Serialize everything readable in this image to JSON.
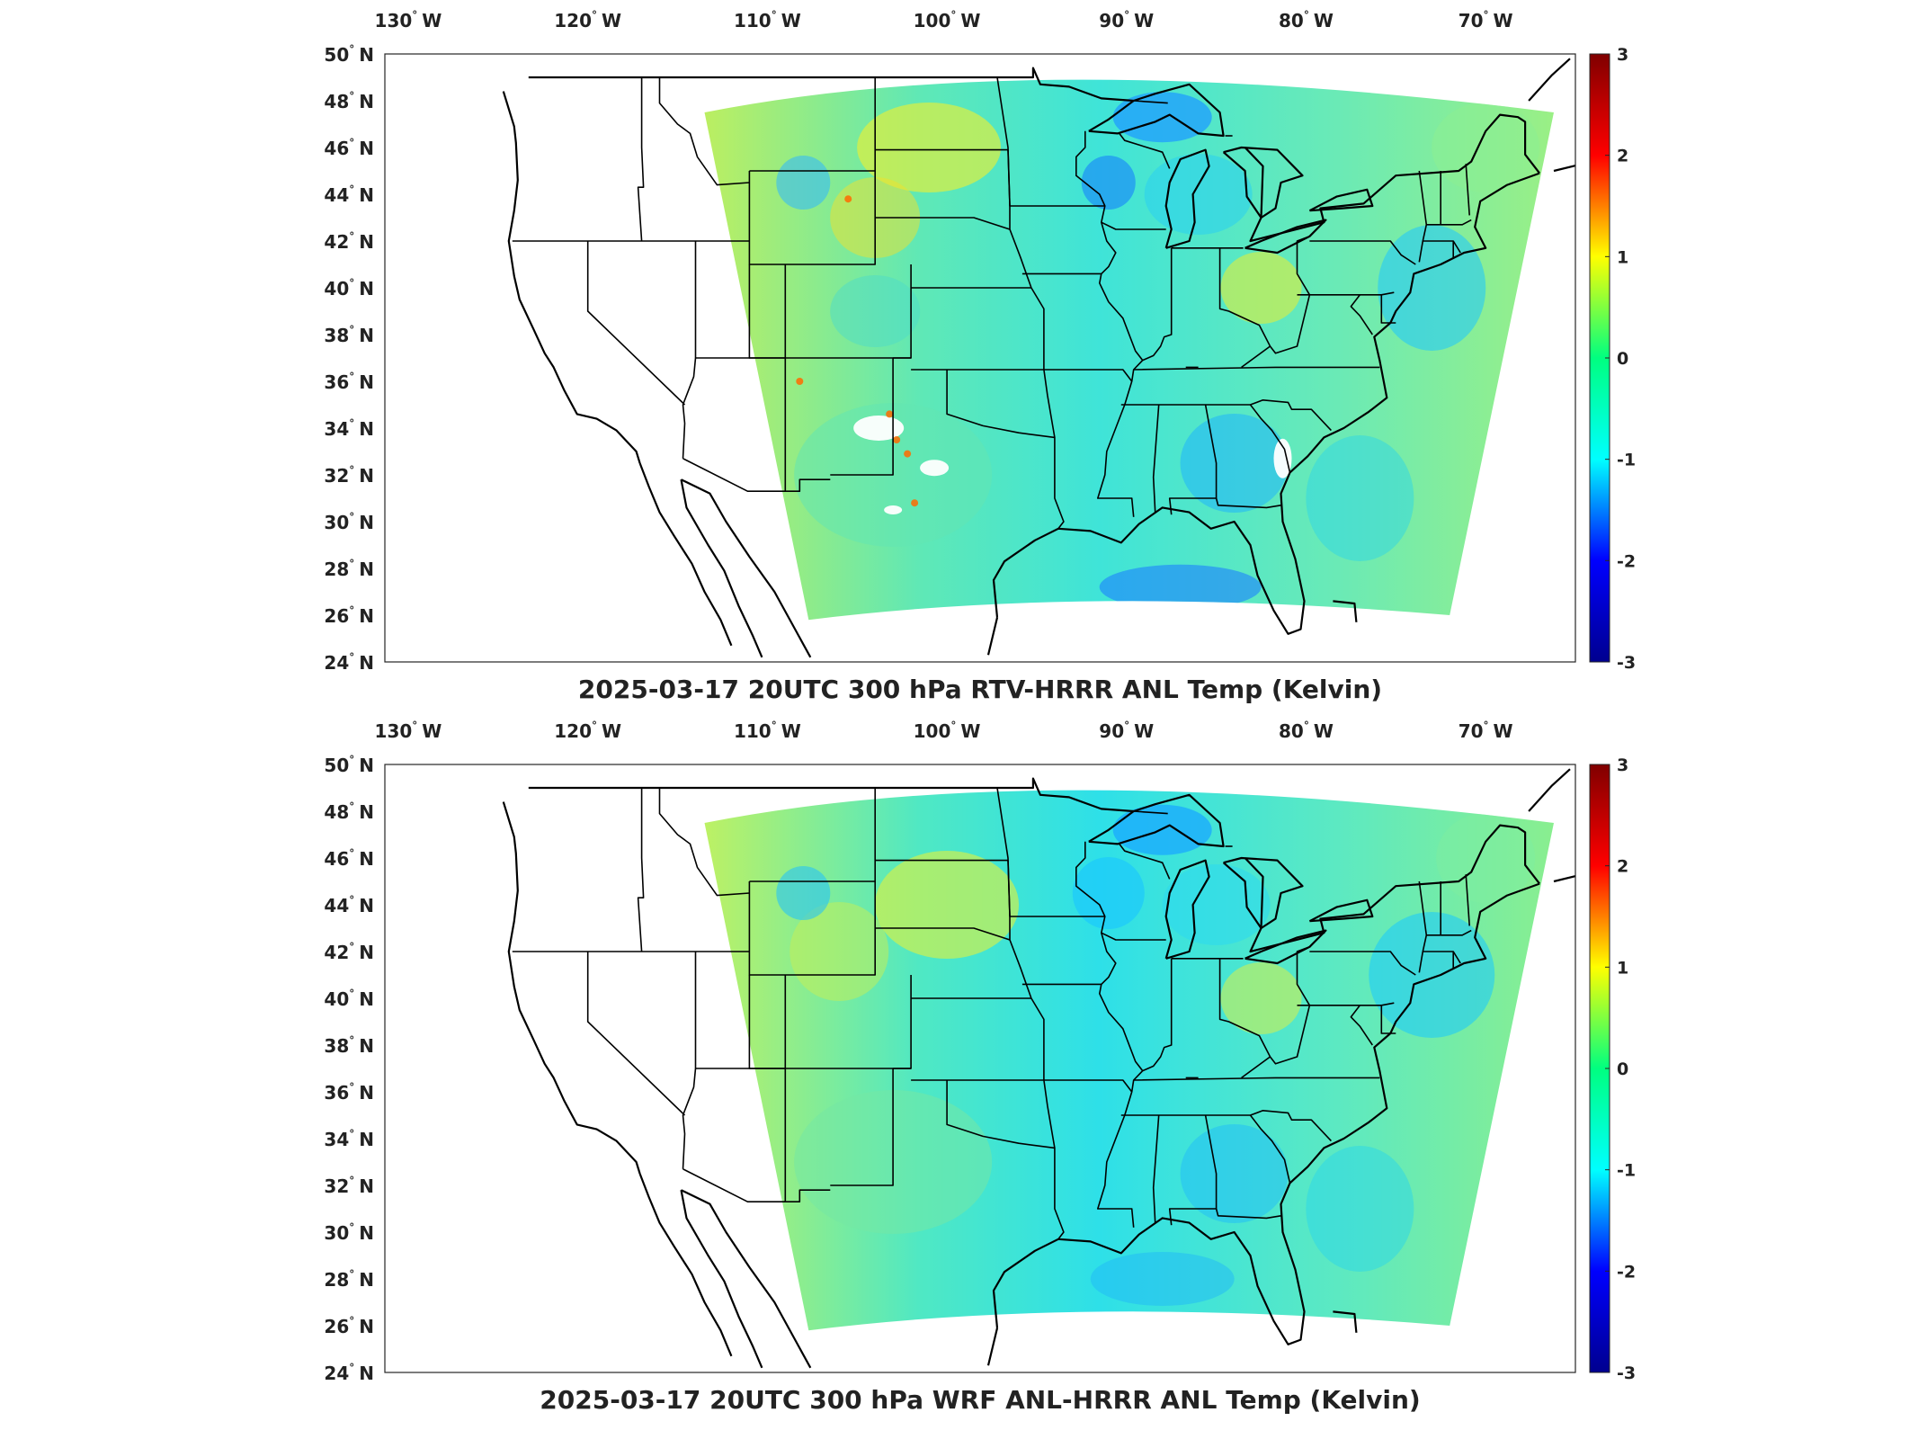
{
  "panels": [
    {
      "title": "2025-03-17 20UTC 300 hPa RTV-HRRR ANL Temp (Kelvin)",
      "variant": "rtv"
    },
    {
      "title": "2025-03-17 20UTC 300 hPa WRF ANL-HRRR ANL Temp (Kelvin)",
      "variant": "wrf"
    }
  ],
  "lon_ticks": [
    {
      "value": -130,
      "num": "130",
      "hemi": "W"
    },
    {
      "value": -120,
      "num": "120",
      "hemi": "W"
    },
    {
      "value": -110,
      "num": "110",
      "hemi": "W"
    },
    {
      "value": -100,
      "num": "100",
      "hemi": "W"
    },
    {
      "value": -90,
      "num": "90",
      "hemi": "W"
    },
    {
      "value": -80,
      "num": "80",
      "hemi": "W"
    },
    {
      "value": -70,
      "num": "70",
      "hemi": "W"
    }
  ],
  "lat_ticks": [
    {
      "value": 50,
      "num": "50",
      "hemi": "N"
    },
    {
      "value": 48,
      "num": "48",
      "hemi": "N"
    },
    {
      "value": 46,
      "num": "46",
      "hemi": "N"
    },
    {
      "value": 44,
      "num": "44",
      "hemi": "N"
    },
    {
      "value": 42,
      "num": "42",
      "hemi": "N"
    },
    {
      "value": 40,
      "num": "40",
      "hemi": "N"
    },
    {
      "value": 38,
      "num": "38",
      "hemi": "N"
    },
    {
      "value": 36,
      "num": "36",
      "hemi": "N"
    },
    {
      "value": 34,
      "num": "34",
      "hemi": "N"
    },
    {
      "value": 32,
      "num": "32",
      "hemi": "N"
    },
    {
      "value": 30,
      "num": "30",
      "hemi": "N"
    },
    {
      "value": 28,
      "num": "28",
      "hemi": "N"
    },
    {
      "value": 26,
      "num": "26",
      "hemi": "N"
    },
    {
      "value": 24,
      "num": "24",
      "hemi": "N"
    }
  ],
  "colorbar": {
    "range": [
      -3,
      3
    ],
    "ticks": [
      "3",
      "2",
      "1",
      "0",
      "-1",
      "-2",
      "-3"
    ],
    "colormap": [
      "#00008f",
      "#0000ff",
      "#00ffff",
      "#00ff80",
      "#ffff00",
      "#ff0000",
      "#800000"
    ]
  }
}
